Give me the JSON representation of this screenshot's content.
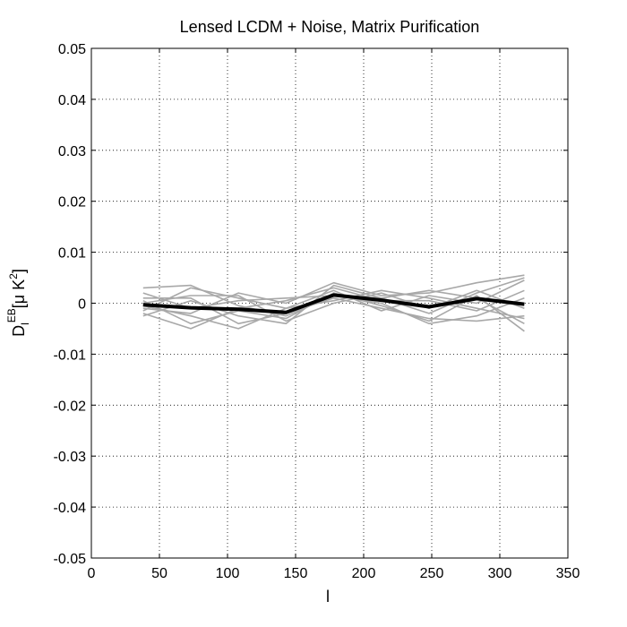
{
  "chart_data": {
    "type": "line",
    "title": "Lensed LCDM + Noise, Matrix Purification",
    "xlabel": "l",
    "ylabel": {
      "main": "D",
      "sub": "l",
      "sup": "EB",
      "bracket_open": "[",
      "mu": "μ",
      "unit": " K",
      "unit_sup": "2",
      "bracket_close": "]"
    },
    "xlim": [
      0,
      350
    ],
    "ylim": [
      -0.05,
      0.05
    ],
    "xticks": [
      0,
      50,
      100,
      150,
      200,
      250,
      300,
      350
    ],
    "yticks": [
      -0.05,
      -0.04,
      -0.03,
      -0.02,
      -0.01,
      0,
      0.01,
      0.02,
      0.03,
      0.04,
      0.05
    ],
    "xtick_labels": [
      "0",
      "50",
      "100",
      "150",
      "200",
      "250",
      "300",
      "350"
    ],
    "ytick_labels": [
      "-0.05",
      "-0.04",
      "-0.03",
      "-0.02",
      "-0.01",
      "0",
      "0.01",
      "0.02",
      "0.03",
      "0.04",
      "0.05"
    ],
    "grid": true,
    "x": [
      38,
      73,
      108,
      143,
      178,
      213,
      248,
      283,
      318
    ],
    "series": [
      {
        "values": [
          0.003,
          0.0035,
          -0.0005,
          -0.0025,
          0.0015,
          0.001,
          -0.002,
          0.002,
          0.005
        ],
        "color": "#a8a8a8",
        "role": "realization"
      },
      {
        "values": [
          -0.0015,
          0.003,
          0.001,
          -0.001,
          0.0005,
          0.0025,
          0.001,
          -0.001,
          -0.003
        ],
        "color": "#a8a8a8",
        "role": "realization"
      },
      {
        "values": [
          0.0005,
          -0.004,
          -0.0015,
          -0.003,
          0.002,
          -0.0005,
          -0.0035,
          0.0015,
          -0.0055
        ],
        "color": "#a8a8a8",
        "role": "realization"
      },
      {
        "values": [
          -0.001,
          -0.002,
          0.002,
          0.0,
          0.004,
          0.0015,
          0.002,
          0.004,
          0.0055
        ],
        "color": "#a8a8a8",
        "role": "realization"
      },
      {
        "values": [
          0.001,
          0.001,
          -0.004,
          -0.002,
          0.001,
          -0.001,
          -0.003,
          -0.0035,
          -0.0025
        ],
        "color": "#a8a8a8",
        "role": "realization"
      },
      {
        "values": [
          -0.002,
          -0.005,
          -0.001,
          0.0005,
          0.003,
          0.0005,
          0.0005,
          -0.0015,
          0.0025
        ],
        "color": "#a8a8a8",
        "role": "realization"
      },
      {
        "values": [
          0.0,
          0.0015,
          0.0015,
          -0.0035,
          0.0,
          0.002,
          -0.001,
          0.0025,
          -0.001
        ],
        "color": "#a8a8a8",
        "role": "realization"
      },
      {
        "values": [
          -0.0005,
          -0.0025,
          -0.005,
          -0.001,
          0.0025,
          -0.0015,
          0.0015,
          0.0,
          0.0045
        ],
        "color": "#a8a8a8",
        "role": "realization"
      },
      {
        "values": [
          0.002,
          -0.001,
          0.0005,
          0.001,
          0.0015,
          0.0,
          -0.004,
          -0.0025,
          0.001
        ],
        "color": "#a8a8a8",
        "role": "realization"
      },
      {
        "values": [
          -0.0025,
          0.0005,
          -0.0025,
          -0.004,
          0.0035,
          0.001,
          0.0025,
          0.001,
          -0.004
        ],
        "color": "#a8a8a8",
        "role": "realization"
      },
      {
        "values": [
          -0.0003,
          -0.0009,
          -0.0012,
          -0.0018,
          0.0016,
          0.0006,
          -0.0007,
          0.0009,
          -0.0002
        ],
        "color": "#000000",
        "role": "mean"
      }
    ]
  }
}
